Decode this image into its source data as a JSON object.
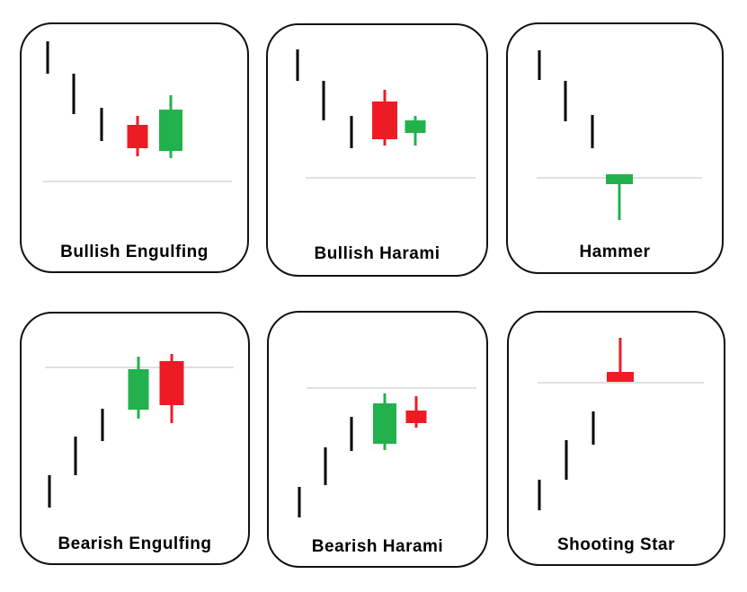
{
  "colors": {
    "bullish": "#22b14c",
    "bearish": "#ed1c24",
    "trend": "#000000",
    "reference": "#c0c0c0",
    "border": "#111111"
  },
  "patterns": [
    {
      "id": "bullish-engulfing",
      "name": "Bullish Engulfing",
      "trend": "down",
      "candles": [
        {
          "type": "bearish",
          "open": 128,
          "close": 102,
          "high": 138,
          "low": 93
        },
        {
          "type": "bullish",
          "open": 99,
          "close": 145,
          "high": 161,
          "low": 91
        }
      ]
    },
    {
      "id": "bullish-harami",
      "name": "Bullish Harami",
      "trend": "down",
      "candles": [
        {
          "type": "bearish",
          "open": 151,
          "close": 109,
          "high": 164,
          "low": 102
        },
        {
          "type": "bullish",
          "open": 116,
          "close": 130,
          "high": 135,
          "low": 102
        }
      ]
    },
    {
      "id": "hammer",
      "name": "Hammer",
      "trend": "down",
      "candles": [
        {
          "type": "bullish",
          "open": 122,
          "close": 133,
          "high": 133,
          "low": 82
        }
      ]
    },
    {
      "id": "bearish-engulfing",
      "name": "Bearish Engulfing",
      "trend": "up",
      "candles": [
        {
          "type": "bullish",
          "open": 95,
          "close": 140,
          "high": 154,
          "low": 85
        },
        {
          "type": "bearish",
          "open": 149,
          "close": 100,
          "high": 157,
          "low": 80
        }
      ]
    },
    {
      "id": "bearish-harami",
      "name": "Bearish Harami",
      "trend": "up",
      "candles": [
        {
          "type": "bullish",
          "open": 95,
          "close": 140,
          "high": 151,
          "low": 88
        },
        {
          "type": "bearish",
          "open": 132,
          "close": 118,
          "high": 148,
          "low": 113
        }
      ]
    },
    {
      "id": "shooting-star",
      "name": "Shooting Star",
      "trend": "up",
      "candles": [
        {
          "type": "bearish",
          "open": 123,
          "close": 112,
          "high": 161,
          "low": 112
        }
      ]
    }
  ]
}
